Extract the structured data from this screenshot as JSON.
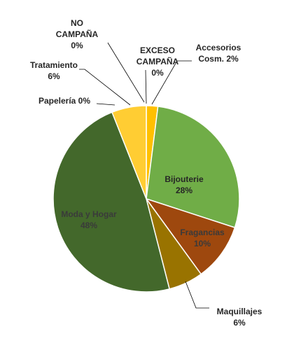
{
  "chart_data": {
    "type": "pie",
    "title": "",
    "slices": [
      {
        "label": "Accesorios Cosm.",
        "label_lines": [
          "Accesorios",
          "Cosm. 2%"
        ],
        "value": 2,
        "color": "#ffc000",
        "label_pos": "outside",
        "pct_text": "2%"
      },
      {
        "label": "Bijouterie",
        "label_lines": [
          "Bijouterie",
          "28%"
        ],
        "value": 28,
        "color": "#70ad47",
        "label_pos": "inside",
        "pct_text": "28%"
      },
      {
        "label": "Fragancias",
        "label_lines": [
          "Fragancias",
          "10%"
        ],
        "value": 10,
        "color": "#9e480e",
        "label_pos": "inside",
        "pct_text": "10%"
      },
      {
        "label": "Maquillajes",
        "label_lines": [
          "Maquillajes",
          "6%"
        ],
        "value": 6,
        "color": "#997300",
        "label_pos": "outside",
        "pct_text": "6%"
      },
      {
        "label": "Moda y Hogar",
        "label_lines": [
          "Moda y Hogar",
          "48%"
        ],
        "value": 48,
        "color": "#43682b",
        "label_pos": "inside",
        "pct_text": "48%"
      },
      {
        "label": "Papelería",
        "label_lines": [
          "Papelería 0%"
        ],
        "value": 0,
        "color": "#ffd966",
        "label_pos": "outside",
        "pct_text": "0%"
      },
      {
        "label": "Tratamiento",
        "label_lines": [
          "Tratamiento",
          "6%"
        ],
        "value": 6,
        "color": "#ffcd33",
        "label_pos": "outside",
        "pct_text": "6%"
      },
      {
        "label": "NO CAMPAÑA",
        "label_lines": [
          "NO",
          "CAMPAÑA",
          "0%"
        ],
        "value": 0,
        "color": "#c9c9c9",
        "label_pos": "outside",
        "pct_text": "0%"
      },
      {
        "label": "EXCESO CAMPAÑA",
        "label_lines": [
          "EXCESO",
          "CAMPAÑA",
          "0%"
        ],
        "value": 0,
        "color": "#f4b183",
        "label_pos": "outside",
        "pct_text": "0%"
      }
    ],
    "legend": "none",
    "grid": false
  },
  "colors": {
    "slice_border": "#ffffff",
    "leader_line": "#000000",
    "label_dark": "#262626",
    "label_on_dark": "#3a3a3a"
  }
}
